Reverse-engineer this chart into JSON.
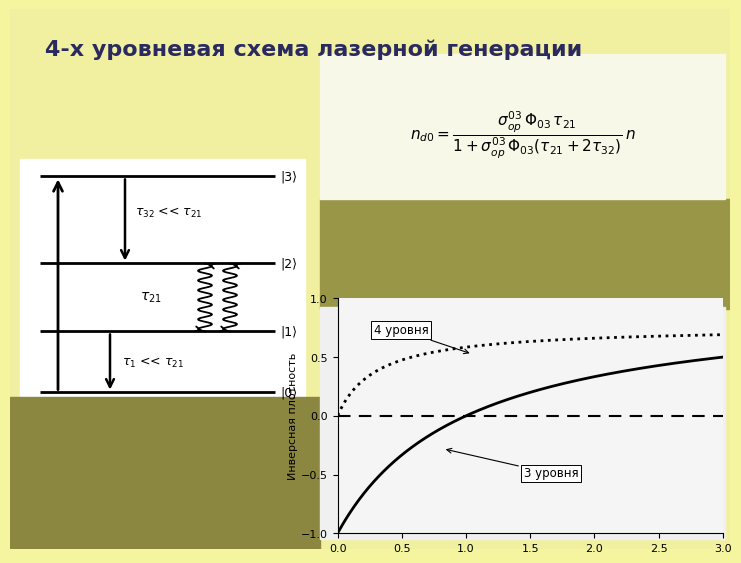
{
  "title": "4-х уровневая схема лазерной генерации",
  "title_fontsize": 16,
  "bg_yellow": "#f5f5a0",
  "bg_olive": "#8b8b40",
  "bg_formula_white": "#f8f8e8",
  "bg_plot_white": "#f5f5f5",
  "bg_olive_mid": "#9a9a50",
  "plot_ylabel": "Инверсная плотность",
  "plot_xlim": [
    0.0,
    3.0
  ],
  "plot_ylim": [
    -1.0,
    1.0
  ],
  "plot_xticks": [
    0.0,
    0.5,
    1.0,
    1.5,
    2.0,
    2.5,
    3.0
  ],
  "plot_yticks": [
    -1.0,
    -0.5,
    0.0,
    0.5,
    1.0
  ],
  "label_4level": "4 уровня",
  "label_3level": "3 уровня",
  "level_labels": [
    "|3⟩",
    "|2⟩",
    "|1⟩",
    "|0⟩"
  ]
}
